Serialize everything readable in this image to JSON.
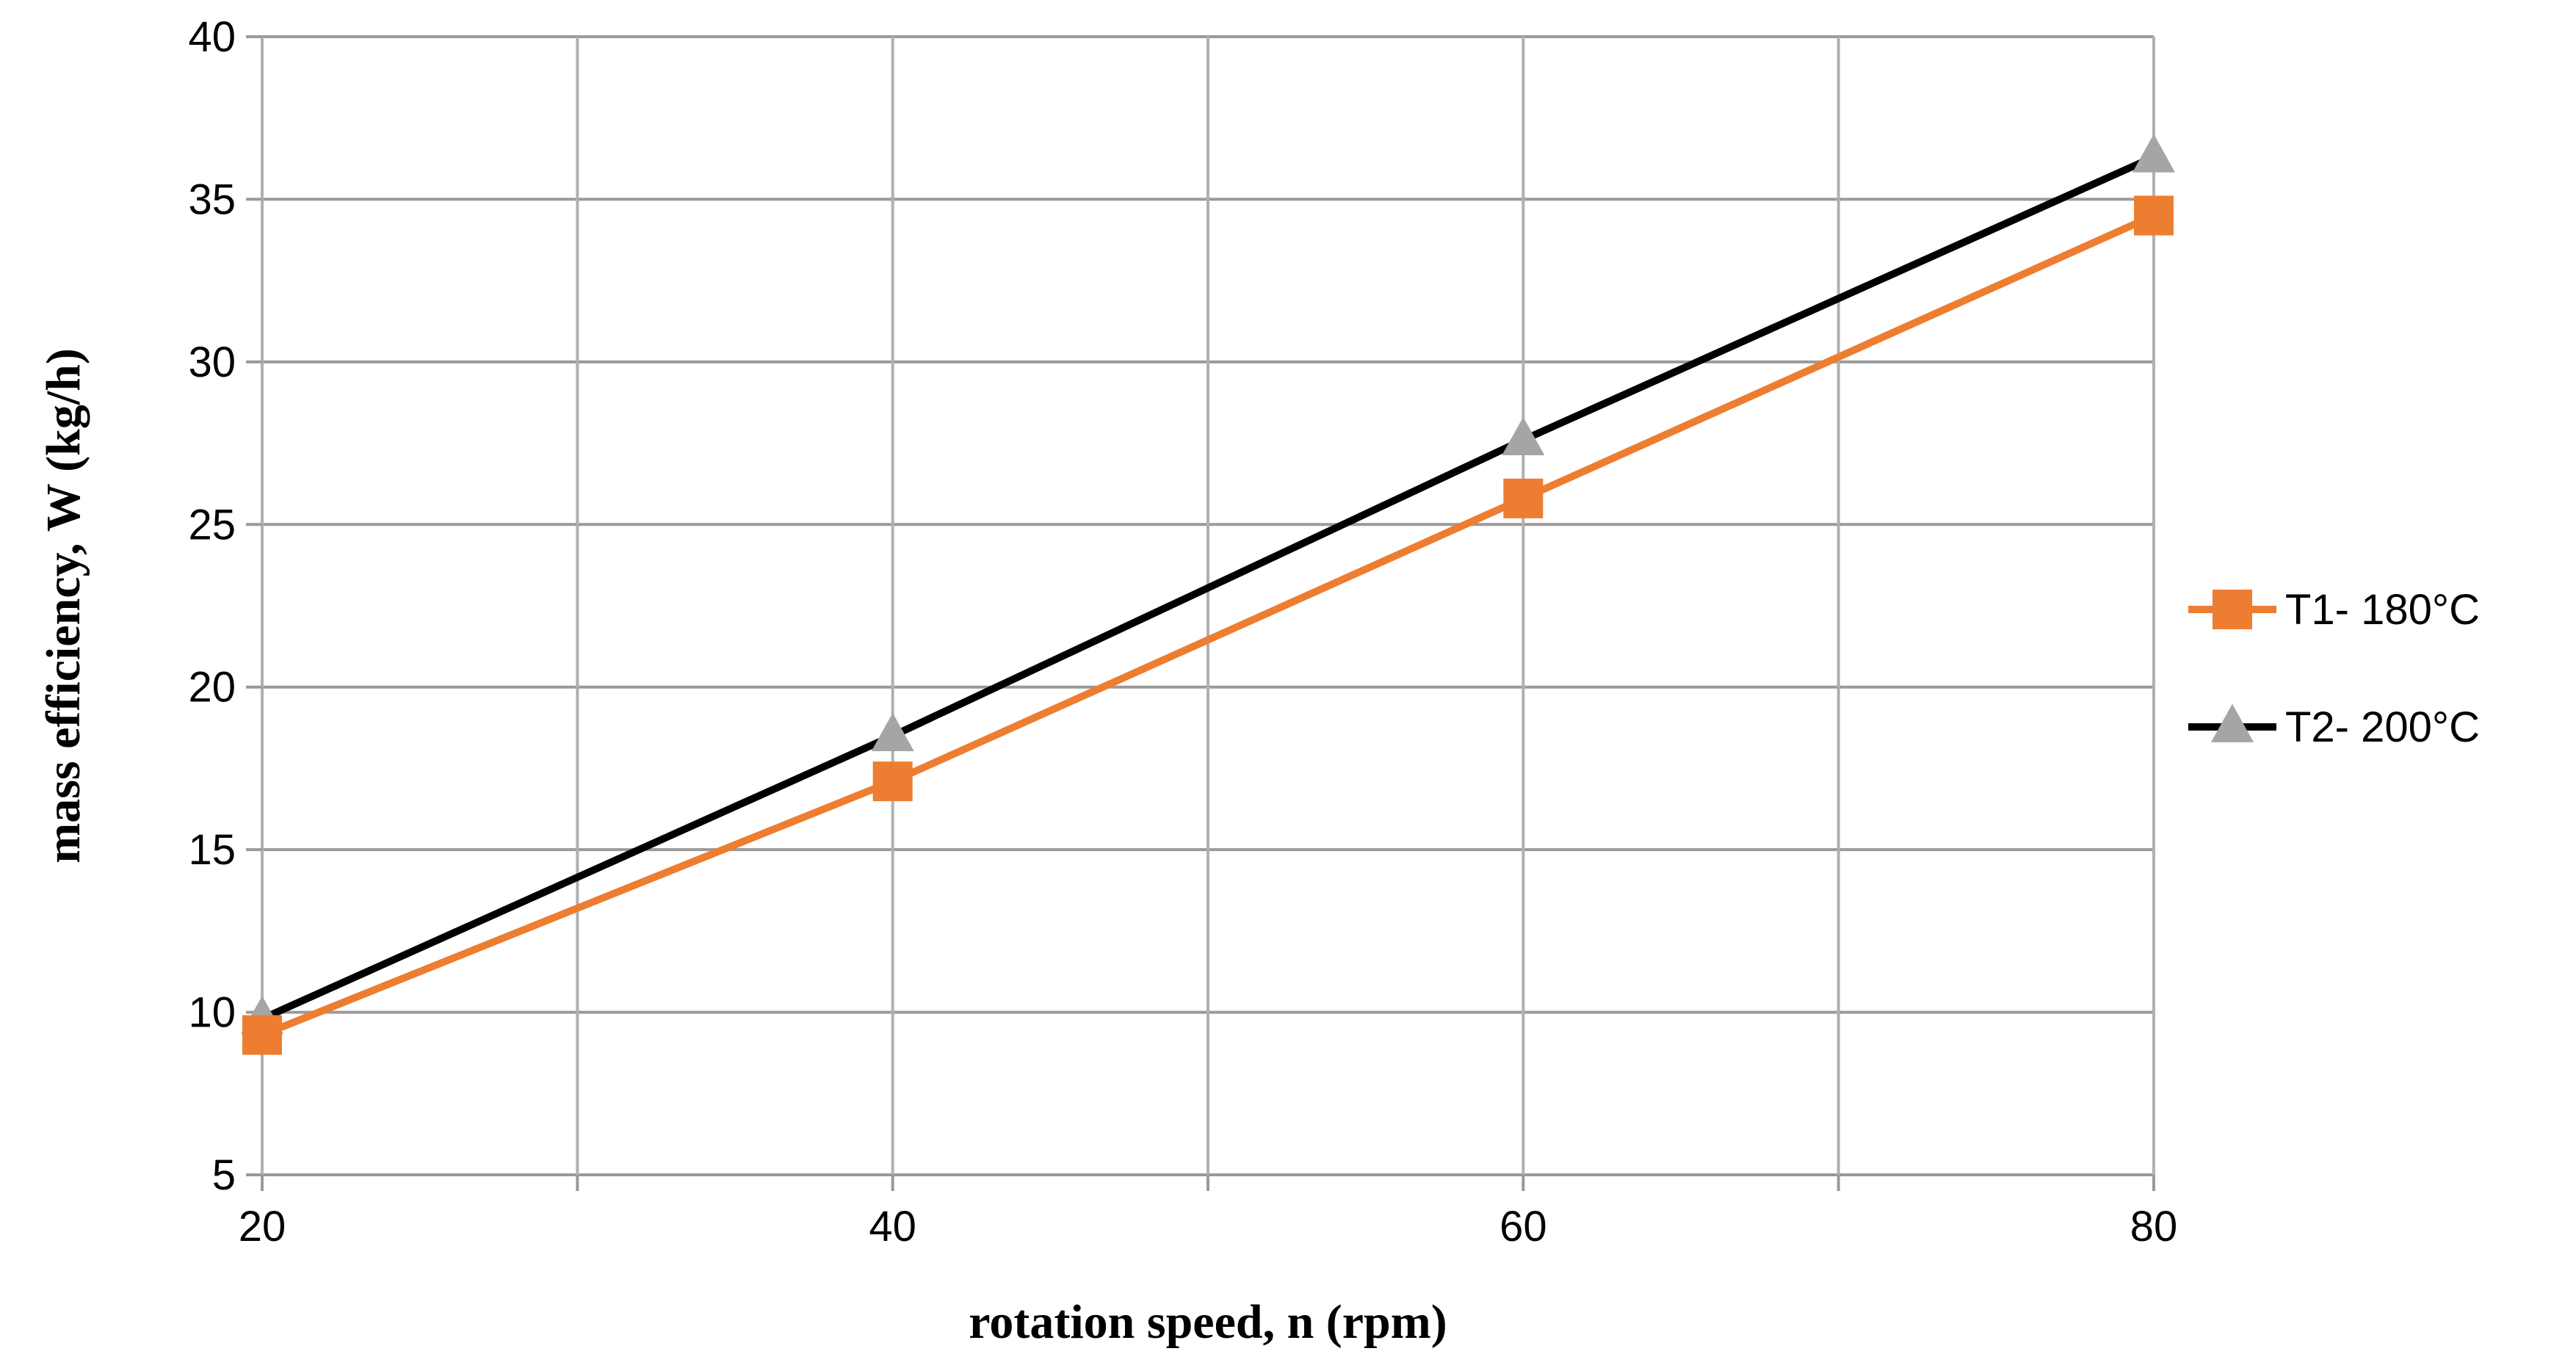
{
  "chart_data": {
    "type": "line",
    "title": "",
    "xlabel": "rotation speed, n (rpm)",
    "ylabel": "mass efficiency, W (kg/h)",
    "x": [
      20,
      40,
      60,
      80
    ],
    "xlim": [
      20,
      80
    ],
    "ylim": [
      5,
      40
    ],
    "xticks": [
      20,
      40,
      60,
      80
    ],
    "yticks": [
      5,
      10,
      15,
      20,
      25,
      30,
      35,
      40
    ],
    "x_minor_gridlines": [
      30,
      50,
      70
    ],
    "grid": true,
    "legend_position": "right",
    "series": [
      {
        "name": "T1- 180°C",
        "values": [
          9.3,
          17.1,
          25.8,
          34.5
        ],
        "color": "#ED7D31",
        "marker": "square",
        "marker_color": "#ED7D31"
      },
      {
        "name": "T2- 200°C",
        "values": [
          9.8,
          18.5,
          27.6,
          36.3
        ],
        "color": "#000000",
        "marker": "triangle",
        "marker_color": "#A5A5A5"
      }
    ]
  }
}
